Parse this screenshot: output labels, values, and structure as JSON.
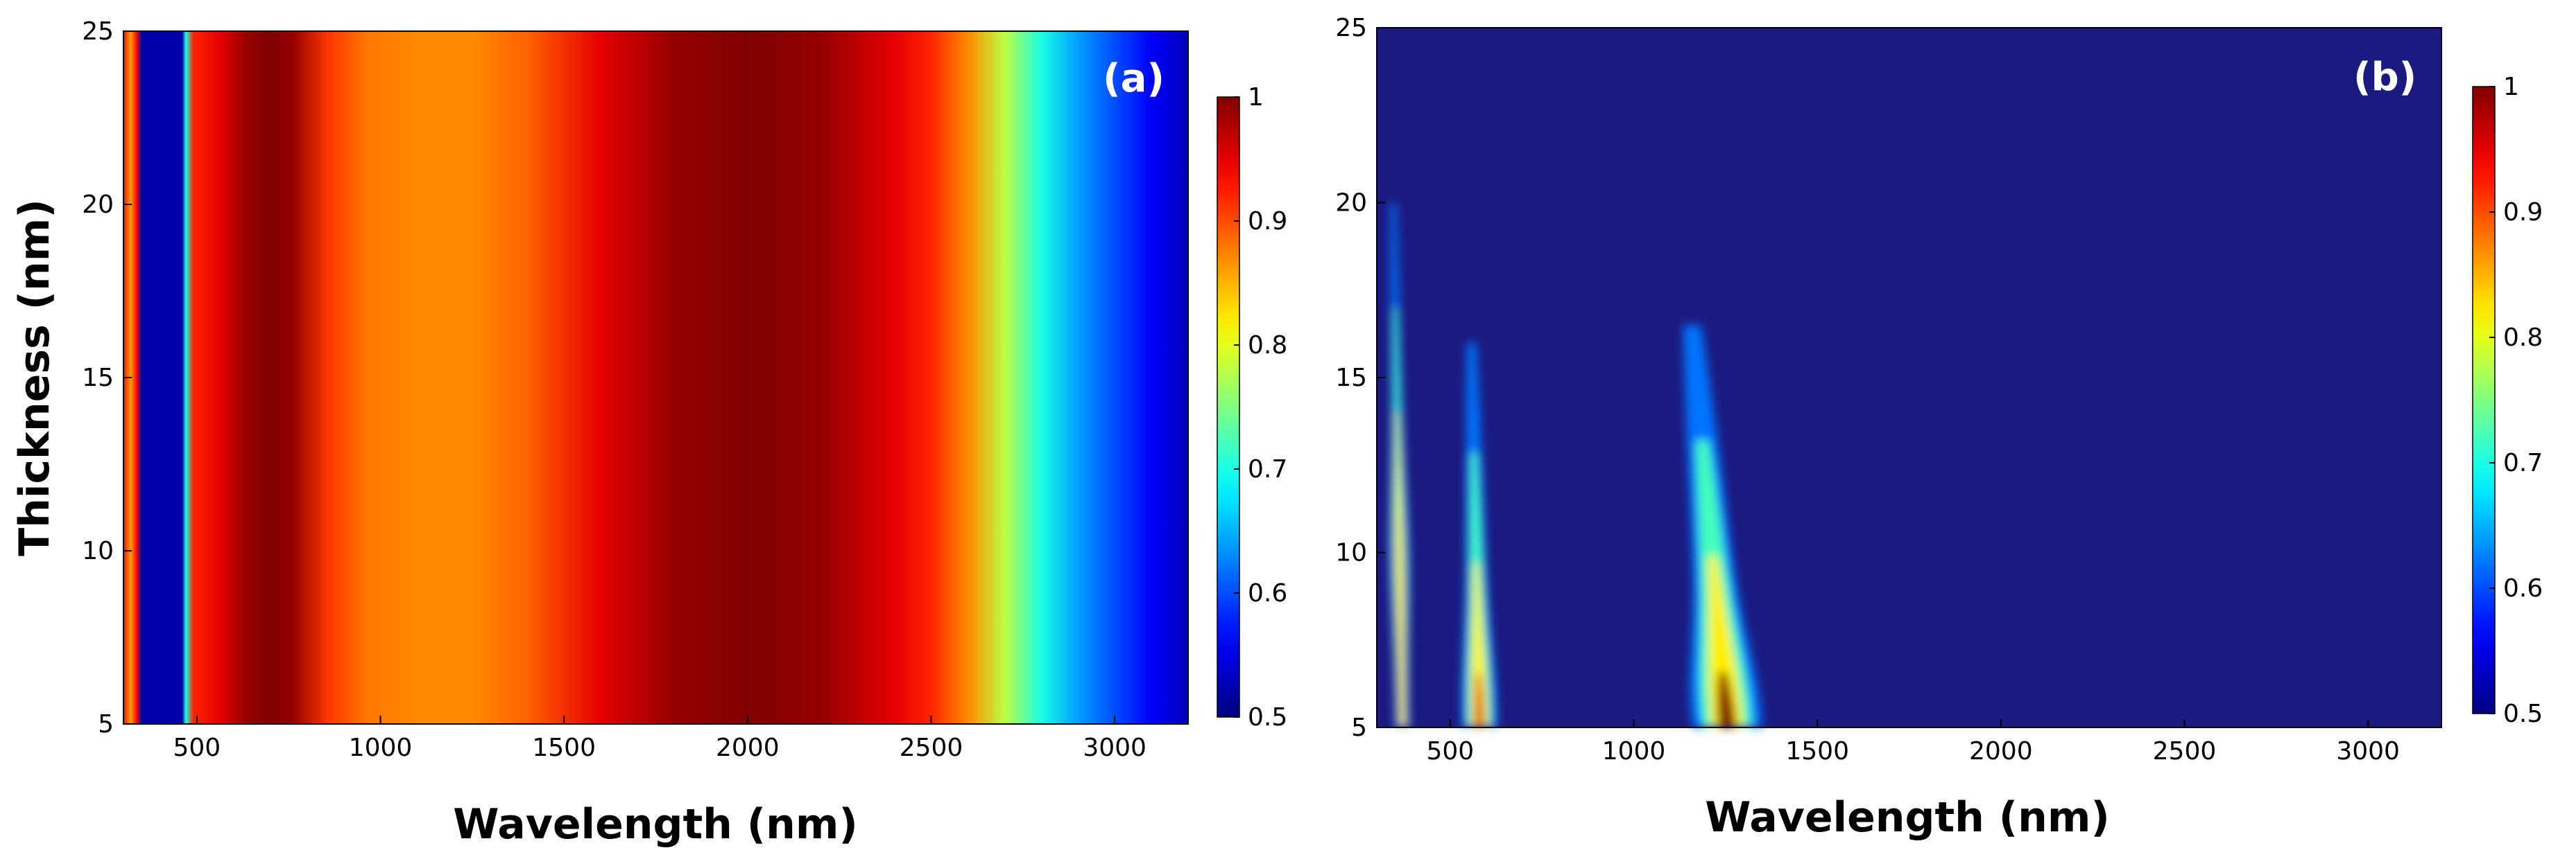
{
  "chart_data": [
    {
      "type": "heatmap",
      "panel_label": "(a)",
      "xlabel": "Wavelength (nm)",
      "ylabel": "Thickness (nm)",
      "xlim": [
        300,
        3200
      ],
      "ylim": [
        5,
        25
      ],
      "xticks": [
        500,
        1000,
        1500,
        2000,
        2500,
        3000
      ],
      "yticks": [
        5,
        10,
        15,
        20,
        25
      ],
      "colorbar": {
        "min": 0.5,
        "max": 1,
        "ticks": [
          0.5,
          0.6,
          0.7,
          0.8,
          0.9,
          1
        ]
      },
      "description_values": {
        "wavelength_nm": [
          300,
          320,
          335,
          350,
          460,
          470,
          490,
          560,
          640,
          700,
          760,
          860,
          960,
          1100,
          1250,
          1400,
          1600,
          1800,
          2000,
          2200,
          2400,
          2500,
          2600,
          2700,
          2800,
          2900,
          3000,
          3100,
          3200
        ],
        "value": [
          0.93,
          0.86,
          0.93,
          0.52,
          0.52,
          0.7,
          0.92,
          0.95,
          0.99,
          1.0,
          0.99,
          0.91,
          0.88,
          0.87,
          0.87,
          0.89,
          0.95,
          0.99,
          1.0,
          0.99,
          0.95,
          0.92,
          0.87,
          0.78,
          0.7,
          0.64,
          0.6,
          0.56,
          0.53
        ]
      }
    },
    {
      "type": "heatmap",
      "panel_label": "(b)",
      "xlabel": "Wavelength (nm)",
      "ylabel": "",
      "xlim": [
        300,
        3200
      ],
      "ylim": [
        5,
        25
      ],
      "xticks": [
        500,
        1000,
        1500,
        2000,
        2500,
        3000
      ],
      "yticks": [
        5,
        10,
        15,
        20,
        25
      ],
      "colorbar": {
        "min": 0.5,
        "max": 1,
        "ticks": [
          0.5,
          0.6,
          0.7,
          0.8,
          0.9,
          1
        ]
      },
      "background_value": 0.5,
      "bands": [
        {
          "x_at_y5": 370,
          "x_at_y20": 345,
          "y_max": 20,
          "peak_y": 10,
          "peak_value": 0.85,
          "width_nm": 18
        },
        {
          "x_at_y5": 580,
          "x_at_y20": 550,
          "y_max": 16,
          "peak_y": 5.5,
          "peak_value": 0.95,
          "width_nm": 30
        },
        {
          "x_at_y5": 1255,
          "x_at_y20": 1130,
          "y_max": 16.5,
          "peak_y": 5.5,
          "peak_value": 1.0,
          "width_nm": 60
        }
      ]
    }
  ]
}
